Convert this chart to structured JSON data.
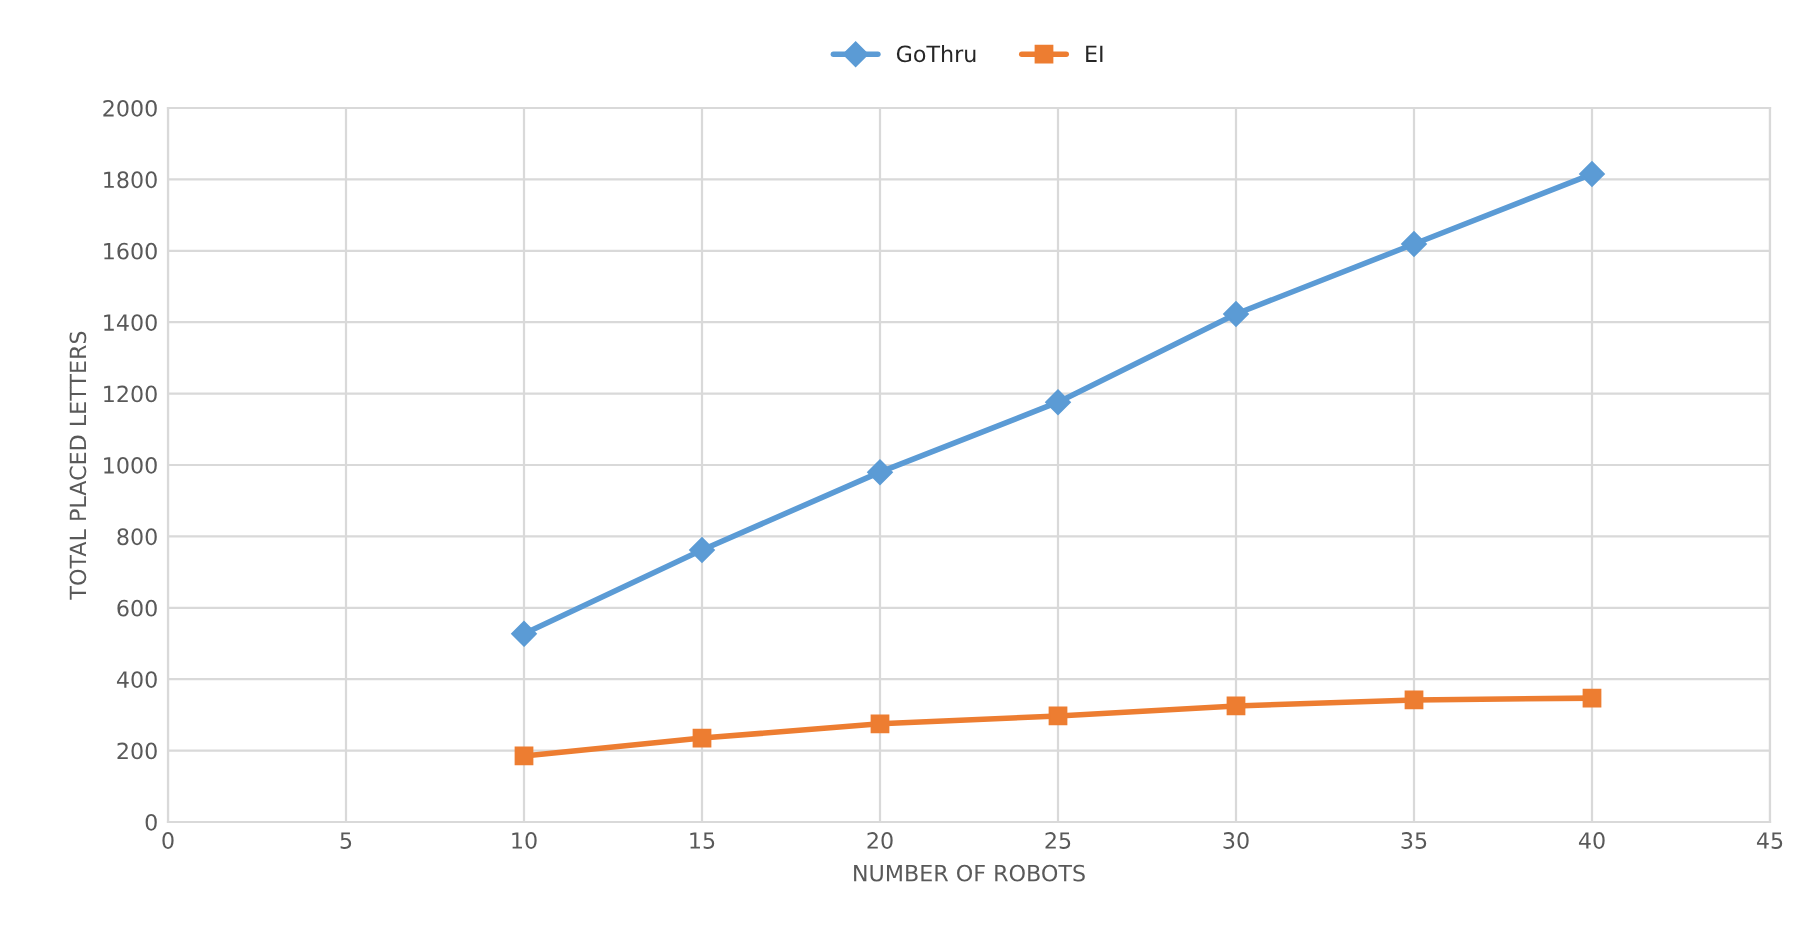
{
  "chart_data": {
    "type": "line",
    "xlabel": "NUMBER OF ROBOTS",
    "ylabel": "TOTAL PLACED LETTERS",
    "x": [
      10,
      15,
      20,
      25,
      30,
      35,
      40
    ],
    "series": [
      {
        "name": "GoThru",
        "color": "#5b9bd5",
        "marker": "diamond",
        "values": [
          527,
          762,
          980,
          1176,
          1423,
          1619,
          1815
        ]
      },
      {
        "name": "EI",
        "color": "#ed7d31",
        "marker": "square",
        "values": [
          185,
          235,
          275,
          297,
          325,
          342,
          347
        ]
      }
    ],
    "xlim": [
      0,
      45
    ],
    "xticks": [
      0,
      5,
      10,
      15,
      20,
      25,
      30,
      35,
      40,
      45
    ],
    "ylim": [
      0,
      2000
    ],
    "yticks": [
      0,
      200,
      400,
      600,
      800,
      1000,
      1200,
      1400,
      1600,
      1800,
      2000
    ],
    "grid": true,
    "legend": "top",
    "line_style": "solid"
  }
}
